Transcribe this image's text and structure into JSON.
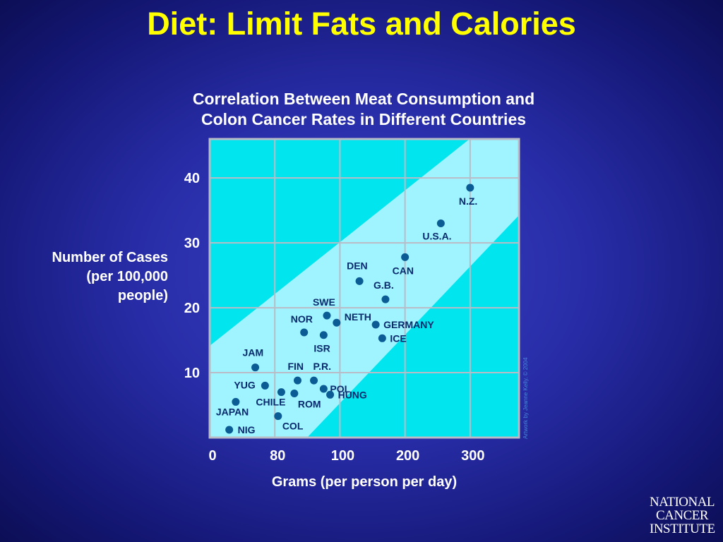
{
  "slide": {
    "title": "Diet: Limit Fats and Calories",
    "credit": "Artwork by Jeanne Kelly. © 2004"
  },
  "logo": {
    "line1": "NATIONAL",
    "line2": "CANCER",
    "line3": "INSTITUTE"
  },
  "colors": {
    "plot_background": "#00e5ee",
    "band": "#9ff4ff",
    "grid": "#b9bcc6",
    "point": "#0b5b94",
    "title": "#ffff00"
  },
  "chart_data": {
    "type": "scatter",
    "title_lines": [
      "Correlation Between Meat Consumption and",
      "Colon Cancer Rates in Different Countries"
    ],
    "xlabel": "Grams (per person per day)",
    "ylabel_lines": [
      "Number of Cases",
      "(per 100,000",
      "people)"
    ],
    "x_tick_labels": [
      "0",
      "80",
      "100",
      "200",
      "300"
    ],
    "y_ticks": [
      10,
      20,
      30,
      40
    ],
    "ylim": [
      0,
      46
    ],
    "grid": true,
    "points": [
      {
        "label": "NIG",
        "x": 0.3,
        "y": 1.2
      },
      {
        "label": "JAPAN",
        "x": 0.4,
        "y": 5.5
      },
      {
        "label": "COL",
        "x": 1.05,
        "y": 3.3
      },
      {
        "label": "CHILE",
        "x": 1.1,
        "y": 7.0
      },
      {
        "label": "YUG",
        "x": 0.85,
        "y": 8.0
      },
      {
        "label": "JAM",
        "x": 0.7,
        "y": 10.8
      },
      {
        "label": "ROM",
        "x": 1.3,
        "y": 6.8
      },
      {
        "label": "FIN",
        "x": 1.35,
        "y": 8.8
      },
      {
        "label": "P.R.",
        "x": 1.6,
        "y": 8.8
      },
      {
        "label": "POL",
        "x": 1.75,
        "y": 7.5
      },
      {
        "label": "HUNG",
        "x": 1.85,
        "y": 6.6
      },
      {
        "label": "NOR",
        "x": 1.45,
        "y": 16.2
      },
      {
        "label": "ISR",
        "x": 1.75,
        "y": 15.8
      },
      {
        "label": "SWE",
        "x": 1.8,
        "y": 18.8
      },
      {
        "label": "NETH",
        "x": 1.95,
        "y": 17.7
      },
      {
        "label": "DEN",
        "x": 2.3,
        "y": 24.1
      },
      {
        "label": "GERMANY",
        "x": 2.55,
        "y": 17.4
      },
      {
        "label": "ICE",
        "x": 2.65,
        "y": 15.3
      },
      {
        "label": "G.B.",
        "x": 2.7,
        "y": 21.3
      },
      {
        "label": "CAN",
        "x": 3.0,
        "y": 27.8
      },
      {
        "label": "U.S.A.",
        "x": 3.55,
        "y": 33.0
      },
      {
        "label": "N.Z.",
        "x": 4.0,
        "y": 38.5
      }
    ]
  }
}
